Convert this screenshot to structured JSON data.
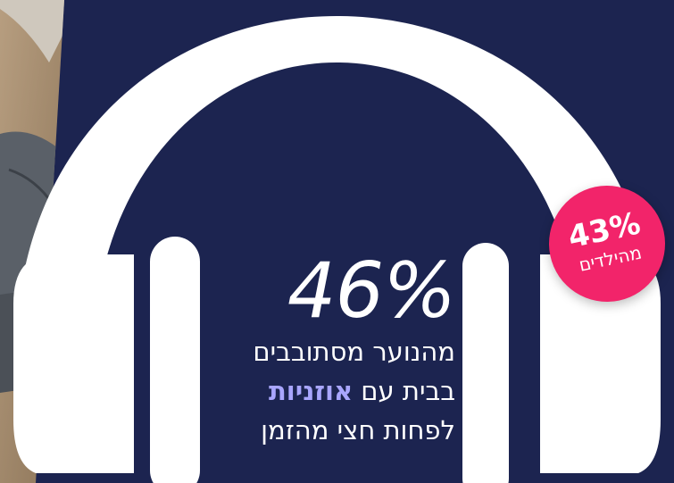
{
  "main_stat": {
    "percent": "46%",
    "line1": "מהנוער מסתובבים",
    "line2_prefix": "בבית עם ",
    "line2_highlight": "אוזניות",
    "line3": "לפחות חצי מהזמן"
  },
  "badge": {
    "percent": "43%",
    "label": "מהילדים"
  },
  "colors": {
    "background": "#1c2450",
    "headphones": "#ffffff",
    "badge": "#f2246a",
    "highlight": "#a9a6ff"
  }
}
